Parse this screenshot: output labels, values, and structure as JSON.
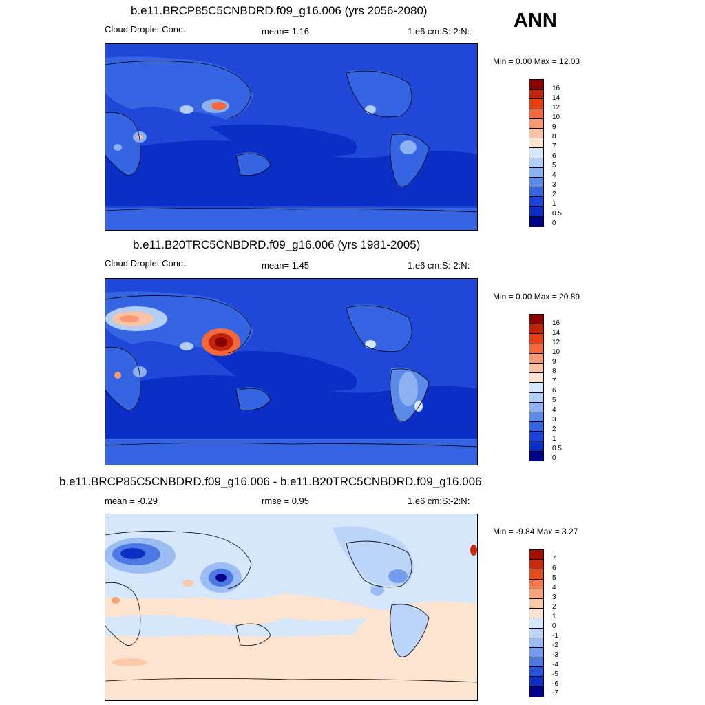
{
  "season": "ANN",
  "panels": [
    {
      "title": "b.e11.BRCP85C5CNBDRD.f09_g16.006 (yrs 2056-2080)",
      "left_label": "Cloud Droplet Conc.",
      "center_label": "mean=   1.16",
      "right_label": "1.e6 cm:S:-2:N:",
      "minmax": "Min =   0.00 Max =  12.03",
      "colorbar_labels": [
        "16",
        "14",
        "12",
        "10",
        "9",
        "8",
        "7",
        "6",
        "5",
        "4",
        "3",
        "2",
        "1",
        "0.5",
        "0"
      ],
      "colorbar_colors": [
        "#8b0000",
        "#c1230b",
        "#e83f12",
        "#f4683c",
        "#f79a74",
        "#fbc3a6",
        "#fde4d0",
        "#d6e7fb",
        "#b2cdf6",
        "#8eb2f1",
        "#5c8ae9",
        "#3665e4",
        "#1a44dc",
        "#0a2ec6",
        "#00008a"
      ]
    },
    {
      "title": "b.e11.B20TRC5CNBDRD.f09_g16.006 (yrs 1981-2005)",
      "left_label": "Cloud Droplet Conc.",
      "center_label": "mean=   1.45",
      "right_label": "1.e6 cm:S:-2:N:",
      "minmax": "Min =   0.00 Max =  20.89",
      "colorbar_labels": [
        "16",
        "14",
        "12",
        "10",
        "9",
        "8",
        "7",
        "6",
        "5",
        "4",
        "3",
        "2",
        "1",
        "0.5",
        "0"
      ],
      "colorbar_colors": [
        "#8b0000",
        "#c1230b",
        "#e83f12",
        "#f4683c",
        "#f79a74",
        "#fbc3a6",
        "#fde4d0",
        "#d6e7fb",
        "#b2cdf6",
        "#8eb2f1",
        "#5c8ae9",
        "#3665e4",
        "#1a44dc",
        "#0a2ec6",
        "#00008a"
      ]
    },
    {
      "title": "b.e11.BRCP85C5CNBDRD.f09_g16.006 - b.e11.B20TRC5CNBDRD.f09_g16.006",
      "left_label": "mean =  -0.29",
      "center_label": "rmse =   0.95",
      "right_label": "1.e6 cm:S:-2:N:",
      "minmax": "Min =  -9.84 Max =   3.27",
      "colorbar_labels": [
        "7",
        "6",
        "5",
        "4",
        "3",
        "2",
        "1",
        "0",
        "-1",
        "-2",
        "-3",
        "-4",
        "-5",
        "-6",
        "-7"
      ],
      "colorbar_colors": [
        "#a50f00",
        "#c92a0c",
        "#e54d1e",
        "#f27a4c",
        "#f8a27a",
        "#fcc8a8",
        "#fde4d0",
        "#d6e7fb",
        "#bcd5f8",
        "#9cbdf3",
        "#739cec",
        "#4d79e5",
        "#2752dd",
        "#0e2fc4",
        "#00008a"
      ]
    }
  ]
}
